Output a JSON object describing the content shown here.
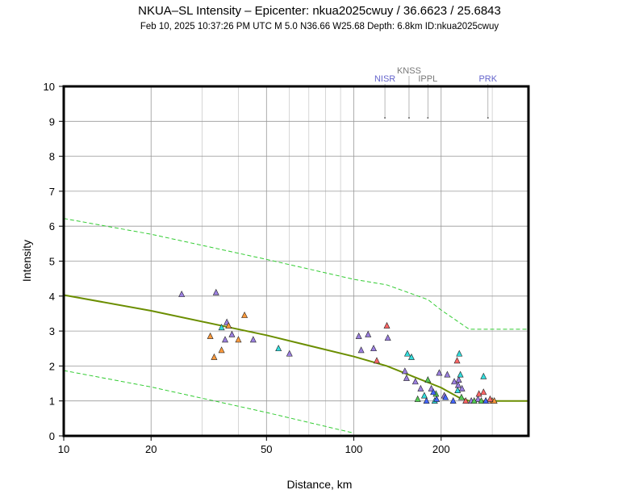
{
  "header": {
    "title": "NKUA–SL Intensity –  Epicenter: nkua2025cwuy / 36.6623 / 25.6843",
    "subtitle": "Feb 10, 2025 10:37:26 PM UTC   M 5.0   N36.66 W25.68   Depth: 6.8km   ID:nkua2025cwuy"
  },
  "chart_data": {
    "type": "scatter",
    "title": "NKUA–SL Intensity –  Epicenter: nkua2025cwuy / 36.6623 / 25.6843",
    "xlabel": "Distance, km",
    "ylabel": "Intensity",
    "x_scale": "log",
    "xlim": [
      10,
      400
    ],
    "ylim": [
      0,
      10
    ],
    "x_ticks": [
      10,
      20,
      50,
      100,
      200
    ],
    "y_ticks": [
      0,
      1,
      2,
      3,
      4,
      5,
      6,
      7,
      8,
      9,
      10
    ],
    "grid": true,
    "colors": {
      "prediction": "#6b8e00",
      "bounds": "#33cc33",
      "grid": "#999999",
      "stations_blue": "#6666cc",
      "stations_gray": "#777777"
    },
    "prediction_curve": {
      "name": "median prediction",
      "x": [
        10,
        20,
        50,
        100,
        130,
        160,
        200,
        230,
        250,
        400
      ],
      "y": [
        4.03,
        3.58,
        2.88,
        2.27,
        2.0,
        1.7,
        1.38,
        1.1,
        1.0,
        1.0
      ]
    },
    "upper_bound": {
      "name": "upper bound",
      "x": [
        10,
        20,
        50,
        100,
        130,
        180,
        200,
        250,
        400
      ],
      "y": [
        6.22,
        5.77,
        5.05,
        4.48,
        4.32,
        3.9,
        3.6,
        3.05,
        3.05
      ]
    },
    "lower_bound": {
      "name": "lower bound",
      "x": [
        10,
        20,
        50,
        100
      ],
      "y": [
        1.87,
        1.4,
        0.67,
        0.08
      ]
    },
    "stations": [
      {
        "code": "NISR",
        "distance": 128,
        "color": "#6666cc"
      },
      {
        "code": "KNSS",
        "distance": 155,
        "color": "#777777"
      },
      {
        "code": "IPPL",
        "distance": 180,
        "color": "#777777"
      },
      {
        "code": "PRK",
        "distance": 290,
        "color": "#6666cc"
      }
    ],
    "series": [
      {
        "name": "purple",
        "color": "#9b7fe0",
        "points": [
          [
            25.5,
            4.05
          ],
          [
            33.5,
            4.1
          ],
          [
            36.5,
            3.25
          ],
          [
            38,
            2.9
          ],
          [
            36,
            2.75
          ],
          [
            45,
            2.75
          ],
          [
            60,
            2.35
          ],
          [
            104,
            2.85
          ],
          [
            112,
            2.9
          ],
          [
            106,
            2.45
          ],
          [
            117,
            2.5
          ],
          [
            131,
            2.8
          ],
          [
            150,
            1.85
          ],
          [
            152,
            1.65
          ],
          [
            163,
            1.55
          ],
          [
            170,
            1.35
          ],
          [
            185,
            1.35
          ],
          [
            197,
            1.8
          ],
          [
            205,
            1.15
          ],
          [
            210,
            1.75
          ],
          [
            222,
            1.55
          ],
          [
            229,
            1.45
          ],
          [
            230,
            1.6
          ],
          [
            236,
            1.35
          ],
          [
            254,
            1.0
          ],
          [
            268,
            1.05
          ],
          [
            285,
            1.0
          ]
        ]
      },
      {
        "name": "orange",
        "color": "#ff9a3c",
        "points": [
          [
            32,
            2.85
          ],
          [
            33,
            2.25
          ],
          [
            35,
            2.45
          ],
          [
            37,
            3.15
          ],
          [
            40,
            2.75
          ],
          [
            42,
            3.45
          ],
          [
            300,
            1.0
          ],
          [
            305,
            1.0
          ]
        ]
      },
      {
        "name": "red",
        "color": "#ff6666",
        "points": [
          [
            120,
            2.15
          ],
          [
            130,
            3.15
          ],
          [
            227,
            2.15
          ],
          [
            243,
            1.0
          ],
          [
            270,
            1.2
          ],
          [
            280,
            1.25
          ],
          [
            295,
            1.05
          ]
        ]
      },
      {
        "name": "cyan",
        "color": "#33dddd",
        "points": [
          [
            35,
            3.1
          ],
          [
            55,
            2.5
          ],
          [
            153,
            2.35
          ],
          [
            158,
            2.25
          ],
          [
            175,
            1.15
          ],
          [
            190,
            1.0
          ],
          [
            231,
            2.35
          ],
          [
            233,
            1.75
          ],
          [
            228,
            1.3
          ],
          [
            280,
            1.7
          ]
        ]
      },
      {
        "name": "green",
        "color": "#55cc55",
        "points": [
          [
            166,
            1.05
          ],
          [
            180,
            1.6
          ],
          [
            192,
            1.2
          ],
          [
            235,
            1.1
          ],
          [
            260,
            1.0
          ],
          [
            275,
            1.0
          ]
        ]
      },
      {
        "name": "blue",
        "color": "#4466ff",
        "points": [
          [
            178,
            1.0
          ],
          [
            188,
            1.25
          ],
          [
            193,
            1.05
          ],
          [
            207,
            1.1
          ],
          [
            220,
            1.0
          ],
          [
            285,
            1.0
          ]
        ]
      }
    ]
  }
}
